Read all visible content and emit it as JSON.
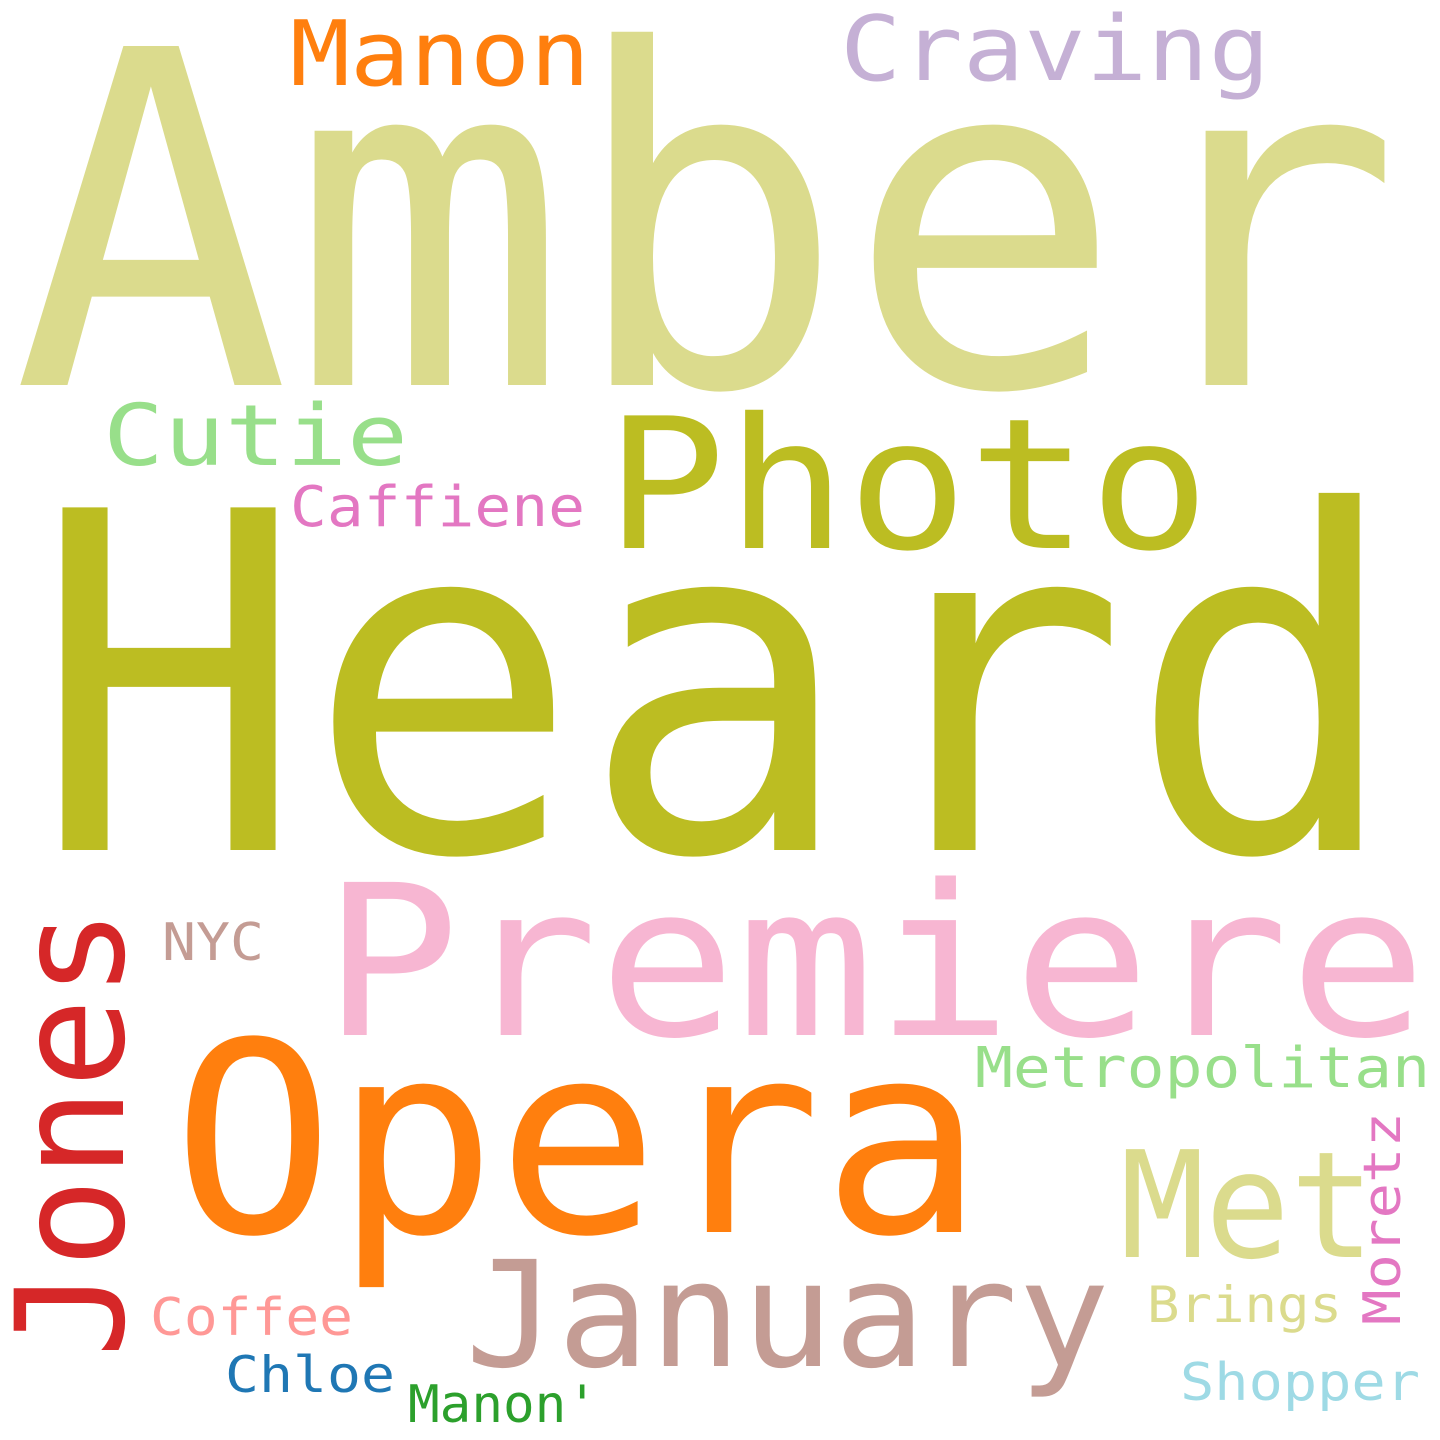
{
  "words": [
    {
      "text": "Amber",
      "color": "#dbdb8d"
    },
    {
      "text": "Heard",
      "color": "#bcbd22"
    },
    {
      "text": "Premiere",
      "color": "#f7b6d2"
    },
    {
      "text": "Opera",
      "color": "#ff7f0e"
    },
    {
      "text": "Photo",
      "color": "#bcbd22"
    },
    {
      "text": "Jones",
      "color": "#d62728"
    },
    {
      "text": "January",
      "color": "#c49c94"
    },
    {
      "text": "Met",
      "color": "#dbdb8d"
    },
    {
      "text": "Craving",
      "color": "#c5b0d5"
    },
    {
      "text": "Manon",
      "color": "#ff7f0e"
    },
    {
      "text": "Cutie",
      "color": "#98df8a"
    },
    {
      "text": "Metropolitan",
      "color": "#98df8a"
    },
    {
      "text": "Caffiene",
      "color": "#e377c2"
    },
    {
      "text": "NYC",
      "color": "#c49c94"
    },
    {
      "text": "Moretz",
      "color": "#e377c2"
    },
    {
      "text": "Brings",
      "color": "#dbdb8d"
    },
    {
      "text": "Coffee",
      "color": "#ff9896"
    },
    {
      "text": "Shopper",
      "color": "#9edae5"
    },
    {
      "text": "Chloe",
      "color": "#1f77b4"
    },
    {
      "text": "Manon'",
      "color": "#2ca02c"
    }
  ]
}
